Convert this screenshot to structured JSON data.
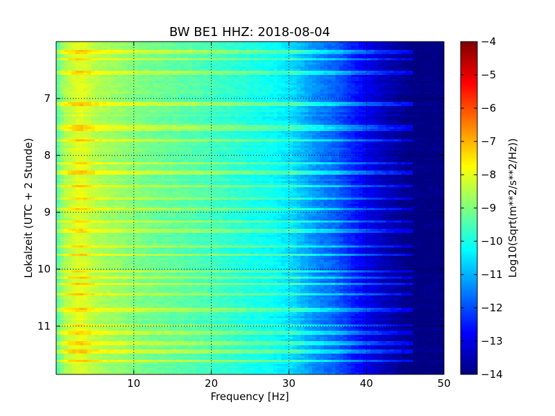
{
  "chart_data": {
    "type": "heatmap",
    "title": "BW BE1 HHZ: 2018-08-04",
    "xlabel": "Frequency [Hz]",
    "ylabel": "Lokalzeit (UTC + 2 Stunde)",
    "xlim": [
      0,
      50
    ],
    "ylim": [
      11.85,
      6.0
    ],
    "xticks": [
      10,
      20,
      30,
      40,
      50
    ],
    "yticks": [
      7,
      8,
      9,
      10,
      11
    ],
    "grid": true,
    "grid_style": "dotted",
    "colormap": "jet",
    "colorbar": {
      "label": "Log10(Sqrt(m**2/s**2/Hz))",
      "range": [
        -14,
        -4
      ],
      "ticks": [
        -4,
        -5,
        -6,
        -7,
        -8,
        -9,
        -10,
        -11,
        -12,
        -13,
        -14
      ]
    },
    "frequency_profile": {
      "frequency_hz": [
        0,
        1,
        2,
        3,
        4,
        5,
        8,
        10,
        13,
        15,
        20,
        25,
        28,
        30,
        32,
        34,
        36,
        38,
        40,
        42,
        44,
        45,
        46,
        50
      ],
      "log10_level": [
        -9.6,
        -8.6,
        -8.3,
        -8.0,
        -8.2,
        -8.5,
        -8.8,
        -9.0,
        -9.2,
        -9.3,
        -9.6,
        -10.0,
        -10.2,
        -10.5,
        -11.0,
        -11.5,
        -11.8,
        -12.4,
        -12.9,
        -13.4,
        -13.7,
        -13.9,
        -14.0,
        -14.0
      ]
    },
    "band_times_hours": [
      6.18,
      6.32,
      6.55,
      7.1,
      7.5,
      7.55,
      7.73,
      8.15,
      8.3,
      8.55,
      8.75,
      8.95,
      9.15,
      9.33,
      9.6,
      9.75,
      10.03,
      10.15,
      10.25,
      10.45,
      10.72,
      11.0,
      11.12,
      11.3,
      11.45,
      11.6
    ]
  }
}
